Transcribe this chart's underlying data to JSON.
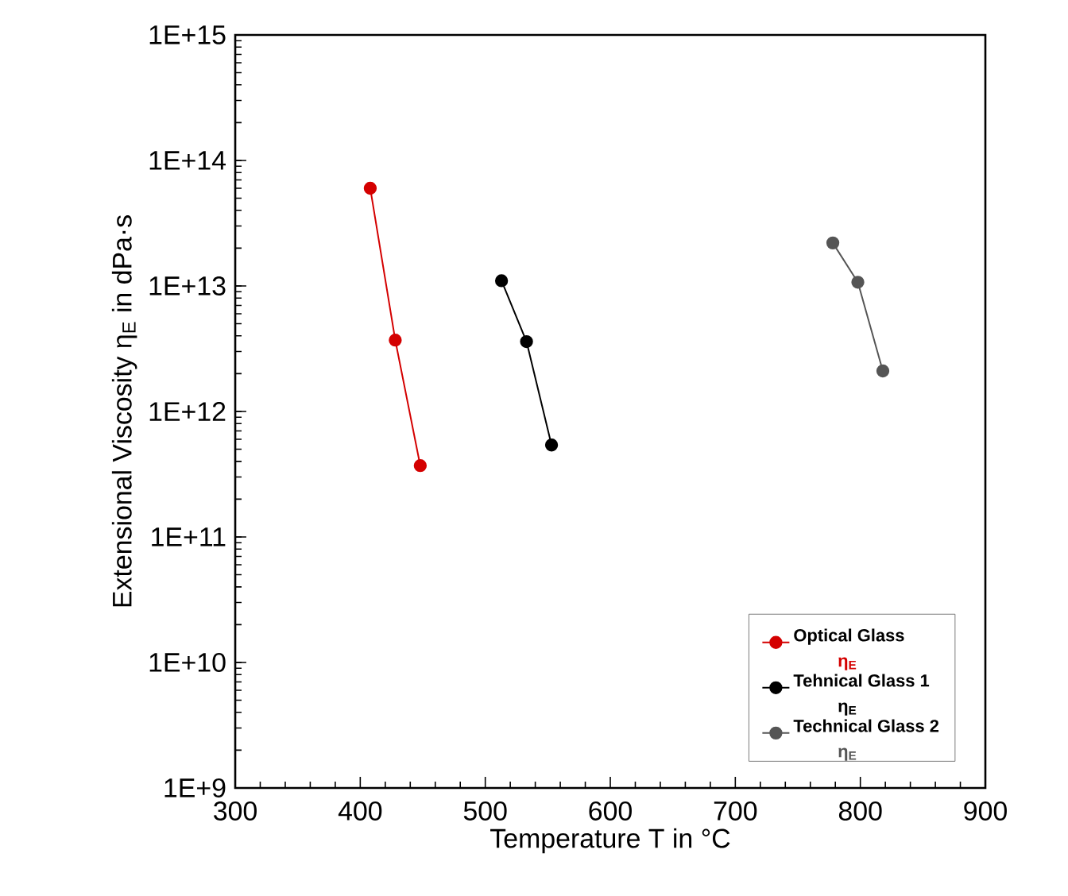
{
  "chart_data": {
    "type": "line",
    "xlabel": "Temperature T in °C",
    "ylabel": "Extensional Viscosity η$_{E}$ in dPa·s",
    "series": [
      {
        "name": "Optical Glass",
        "color": "#d40000",
        "x": [
          408,
          428,
          448
        ],
        "values": [
          60000000000000.0,
          3700000000000.0,
          370000000000.0
        ]
      },
      {
        "name": "Tehnical Glass 1",
        "color": "#000000",
        "x": [
          513,
          533,
          553
        ],
        "values": [
          11000000000000.0,
          3600000000000.0,
          540000000000.0
        ]
      },
      {
        "name": "Technical Glass 2",
        "color": "#555555",
        "x": [
          778,
          798,
          818
        ],
        "values": [
          22000000000000.0,
          10700000000000.0,
          2100000000000.0
        ]
      }
    ],
    "annotations": [
      "η$_{E}$",
      "η$_{E}$",
      "η$_{E}$"
    ],
    "log": "y",
    "xlim": [
      300,
      900
    ],
    "xticks": [
      300,
      400,
      500,
      600,
      700,
      800,
      900
    ],
    "ylim": [
      1000000000.0,
      1000000000000000.0
    ],
    "yticks": [
      {
        "value": 1000000000.0,
        "label": "1E+9"
      },
      {
        "value": 10000000000.0,
        "label": "1E+10"
      },
      {
        "value": 100000000000.0,
        "label": "1E+11"
      },
      {
        "value": 1000000000000.0,
        "label": "1E+12"
      },
      {
        "value": 10000000000000.0,
        "label": "1E+13"
      },
      {
        "value": 100000000000000.0,
        "label": "1E+14"
      },
      {
        "value": 1000000000000000.0,
        "label": "1E+15"
      }
    ],
    "grid": false,
    "legend": "bottom right",
    "marker": "circle",
    "line_style": "solid"
  }
}
